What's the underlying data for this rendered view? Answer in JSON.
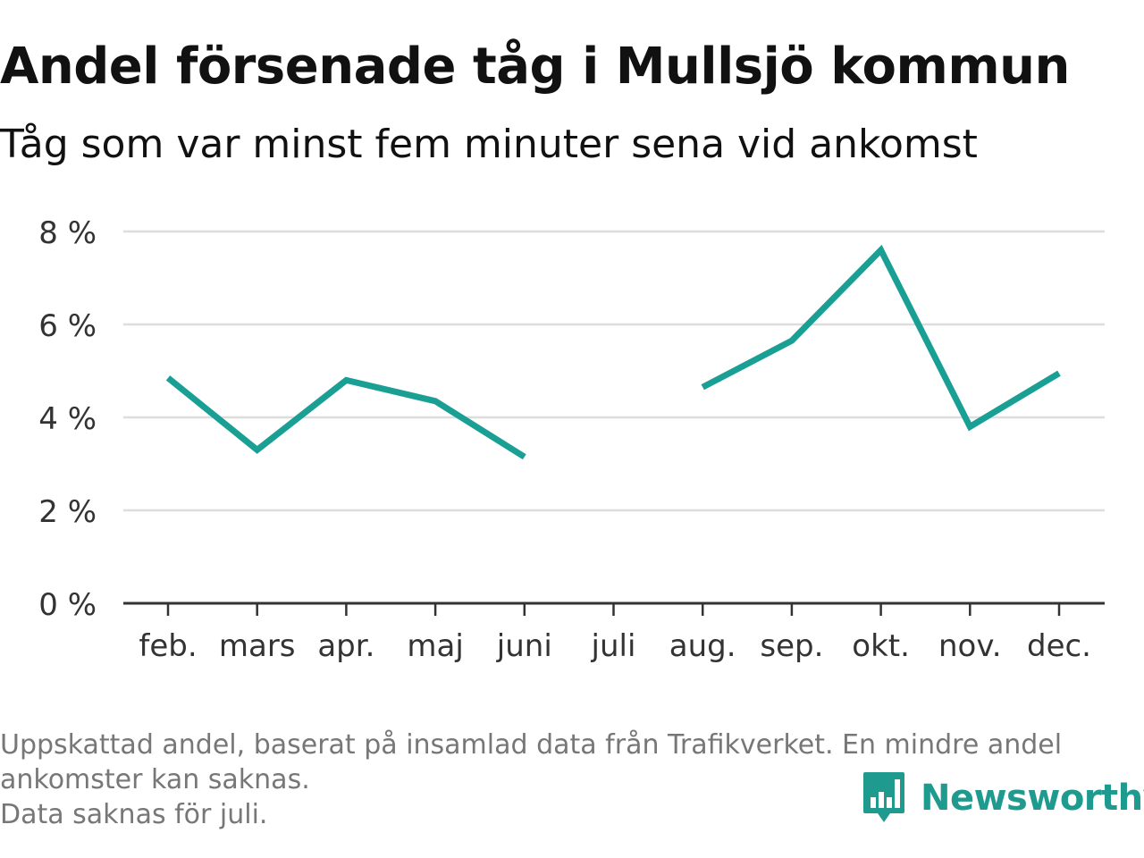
{
  "header": {
    "title": "Andel försenade tåg i Mullsjö kommun",
    "subtitle": "Tåg som var minst fem minuter sena vid ankomst"
  },
  "chart_data": {
    "type": "line",
    "categories": [
      "feb.",
      "mars",
      "apr.",
      "maj",
      "juni",
      "juli",
      "aug.",
      "sep.",
      "okt.",
      "nov.",
      "dec."
    ],
    "series": [
      {
        "values": [
          4.85,
          3.3,
          4.8,
          4.35,
          3.15,
          null,
          4.65,
          5.65,
          7.6,
          3.8,
          4.95
        ]
      }
    ],
    "yticks": [
      "0 %",
      "2 %",
      "4 %",
      "6 %",
      "8 %"
    ],
    "ylim": [
      0,
      8
    ],
    "grid": true,
    "line_color": "#1a9f94"
  },
  "footnote": {
    "line1": "Uppskattad andel, baserat på insamlad data från Trafikverket. En mindre andel",
    "line2": "ankomster kan saknas.",
    "line3": "Data saknas för juli."
  },
  "brand": {
    "name": "Newsworthy",
    "color": "#1f9a8f",
    "icon": "newsworthy-logo-icon"
  }
}
